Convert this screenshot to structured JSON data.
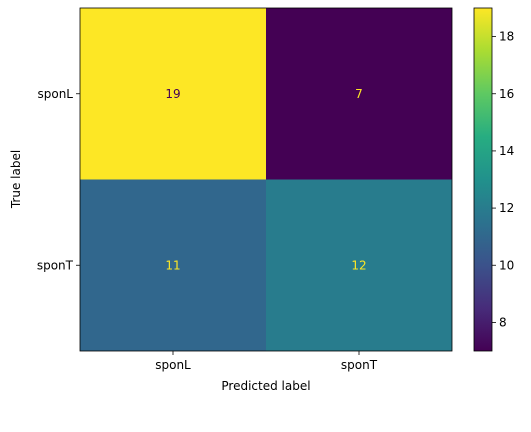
{
  "chart_data": {
    "type": "heatmap",
    "title": "",
    "xlabel": "Predicted label",
    "ylabel": "True label",
    "x_categories": [
      "sponL",
      "sponT"
    ],
    "y_categories": [
      "sponL",
      "sponT"
    ],
    "values": [
      [
        19,
        7
      ],
      [
        11,
        12
      ]
    ],
    "colormap": "viridis",
    "colorbar": {
      "min": 7,
      "max": 19,
      "ticks": [
        8,
        10,
        12,
        14,
        16,
        18
      ]
    },
    "text_colors": {
      "on_dark": "#fde725",
      "on_light": "#440154"
    },
    "grid": false
  }
}
